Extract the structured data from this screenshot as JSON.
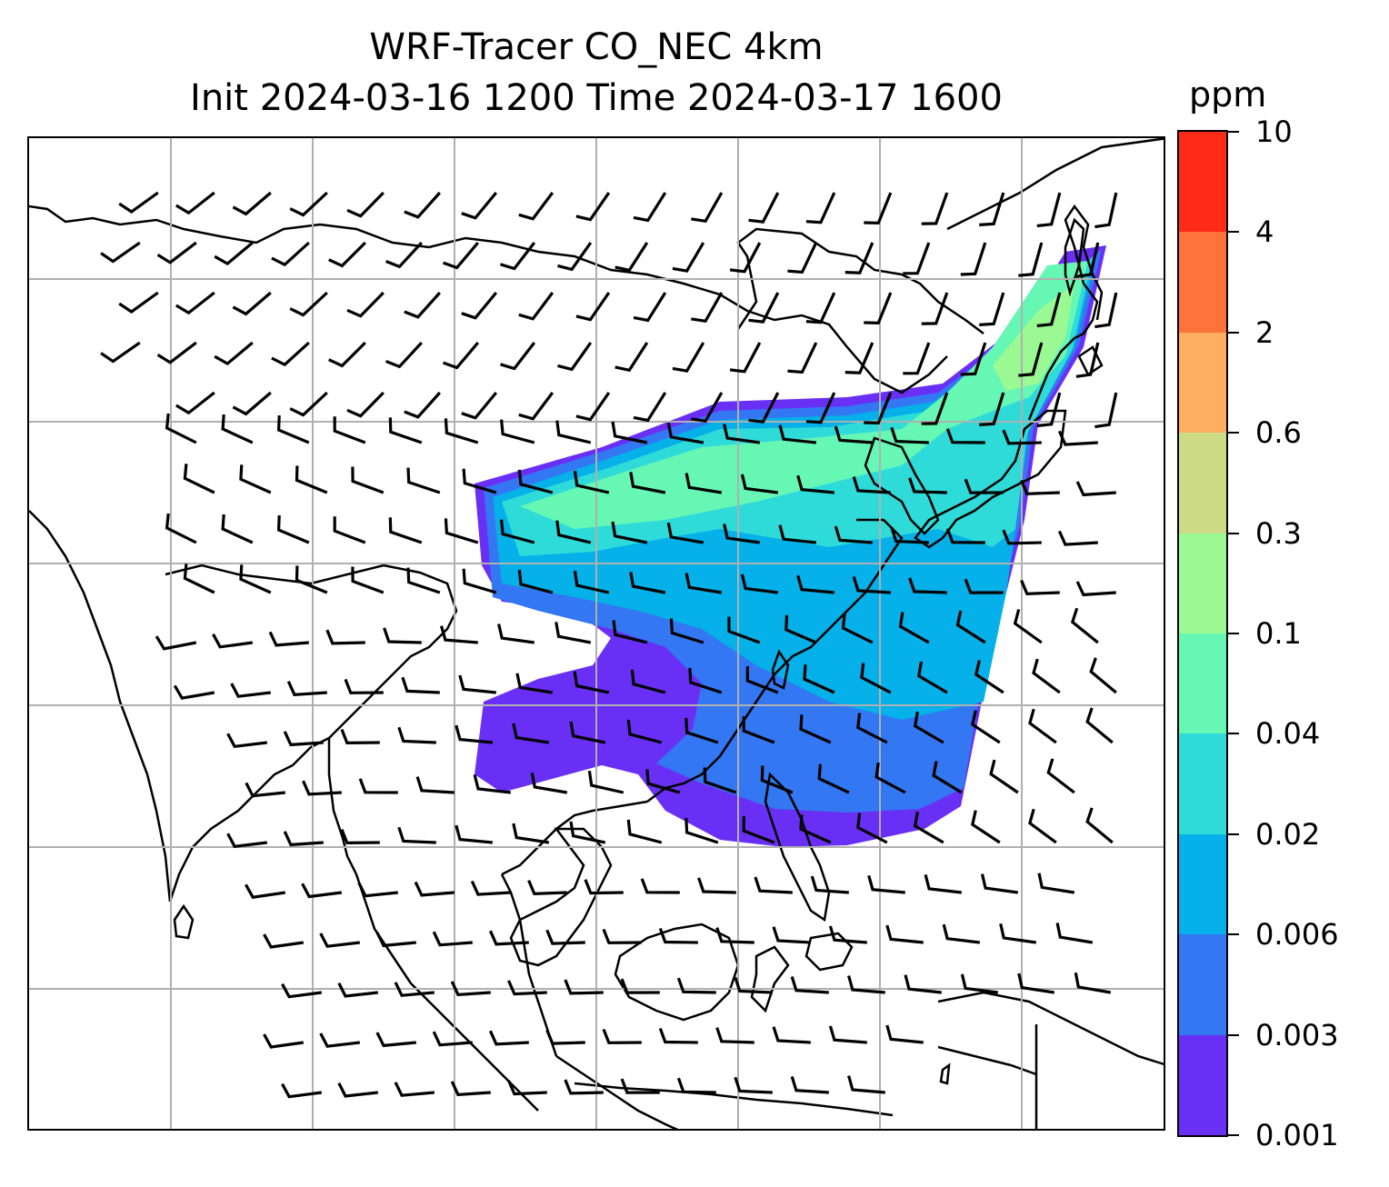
{
  "title": {
    "line1": "WRF-Tracer CO_NEC 4km",
    "line2": "Init 2024-03-16 1200 Time 2024-03-17 1600"
  },
  "colorbar": {
    "unit": "ppm",
    "tick_labels": [
      "0.001",
      "0.003",
      "0.006",
      "0.02",
      "0.04",
      "0.1",
      "0.3",
      "0.6",
      "2",
      "4",
      "10"
    ],
    "colors": [
      "#6a2ff5",
      "#3377f2",
      "#06b0e8",
      "#2fdbd9",
      "#66f7b5",
      "#9bf993",
      "#cddc84",
      "#fdae61",
      "#fe723c",
      "#ff2b17"
    ]
  },
  "map": {
    "gridline_color": "#b0b0b0",
    "coastline_color": "#000000",
    "wind_barb_color": "#000000",
    "plume_levels": [
      "0.001",
      "0.003",
      "0.006",
      "0.02",
      "0.04",
      "0.1"
    ]
  }
}
